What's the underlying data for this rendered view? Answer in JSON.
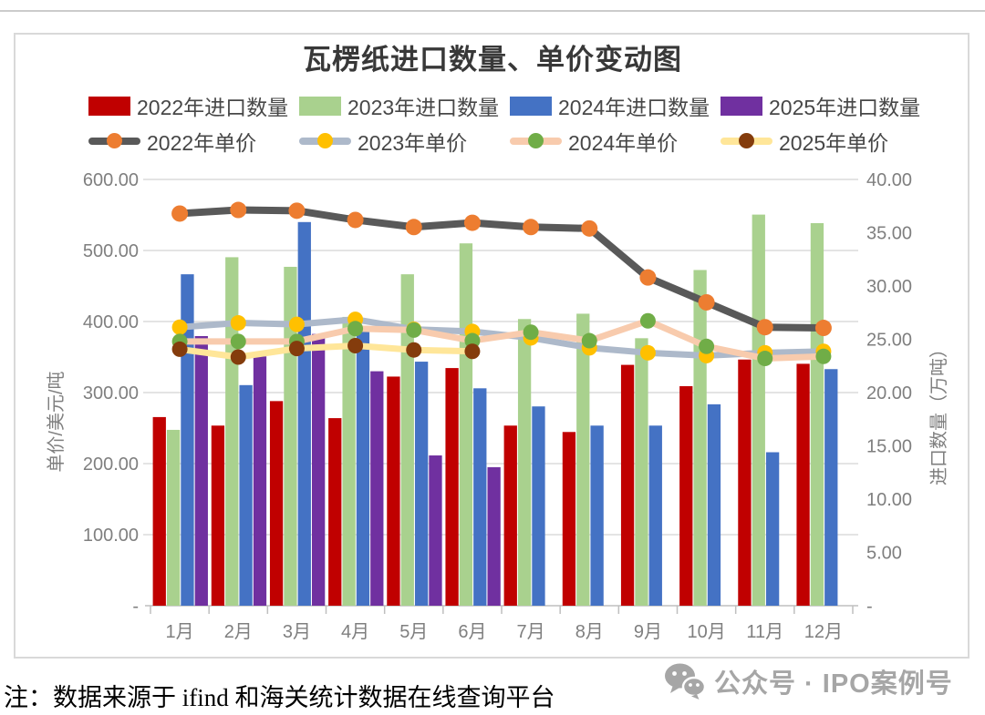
{
  "note": {
    "text": "注：数据来源于 ifind 和海关统计数据在线查询平台"
  },
  "watermark": {
    "text": "公众号 · IPO案例号"
  },
  "chart_data": {
    "type": "bar",
    "subtype": "bar-line-combo",
    "title": "瓦楞纸进口数量、单价变动图",
    "categories": [
      "1月",
      "2月",
      "3月",
      "4月",
      "5月",
      "6月",
      "7月",
      "8月",
      "9月",
      "10月",
      "11月",
      "12月"
    ],
    "grid": true,
    "legend_position": "top",
    "left_axis": {
      "title": "单价/美元/吨",
      "min": 0,
      "max": 600,
      "tick_labels": [
        "600.00",
        "500.00",
        "400.00",
        "300.00",
        "200.00",
        "100.00",
        "-"
      ]
    },
    "right_axis": {
      "title": "进口数量（万吨）",
      "min": 0,
      "max": 40,
      "tick_labels": [
        "40.00",
        "35.00",
        "30.00",
        "25.00",
        "20.00",
        "15.00",
        "10.00",
        "5.00",
        "-"
      ]
    },
    "bar_series": [
      {
        "name": "2022年进口数量",
        "axis": "right",
        "color": "#C00000",
        "values": [
          17.7,
          16.9,
          19.2,
          17.6,
          21.5,
          22.3,
          16.9,
          16.3,
          22.6,
          20.6,
          23.1,
          22.7
        ]
      },
      {
        "name": "2023年进口数量",
        "axis": "right",
        "color": "#A9D18E",
        "values": [
          16.5,
          32.7,
          31.8,
          27.1,
          31.1,
          34.0,
          26.9,
          27.4,
          25.1,
          31.5,
          36.7,
          35.9
        ]
      },
      {
        "name": "2024年进口数量",
        "axis": "right",
        "color": "#4472C4",
        "values": [
          31.1,
          20.7,
          36.0,
          25.7,
          22.9,
          20.4,
          18.7,
          16.9,
          16.9,
          18.9,
          14.4,
          22.2
        ]
      },
      {
        "name": "2025年进口数量",
        "axis": "right",
        "color": "#7030A0",
        "values": [
          25.3,
          23.4,
          25.5,
          22.0,
          14.1,
          13.0,
          null,
          null,
          null,
          null,
          null,
          null
        ]
      }
    ],
    "line_series": [
      {
        "name": "2022年单价",
        "axis": "left",
        "line_color": "#595959",
        "marker_color": "#ED7D31",
        "values": [
          552,
          557,
          556,
          543,
          533,
          539,
          533,
          531,
          462,
          427,
          392,
          391
        ]
      },
      {
        "name": "2023年单价",
        "axis": "left",
        "line_color": "#ADB9CA",
        "marker_color": "#FFC000",
        "values": [
          392,
          398,
          396,
          403,
          389,
          386,
          377,
          363,
          356,
          352,
          356,
          358
        ]
      },
      {
        "name": "2024年单价",
        "axis": "left",
        "line_color": "#F8CBAD",
        "marker_color": "#70AD47",
        "values": [
          372,
          372,
          372,
          390,
          388,
          373,
          385,
          373,
          401,
          365,
          348,
          351
        ]
      },
      {
        "name": "2025年单价",
        "axis": "left",
        "line_color": "#FFE699",
        "marker_color": "#843C0C",
        "values": [
          361,
          350,
          362,
          366,
          360,
          358,
          null,
          null,
          null,
          null,
          null,
          null
        ]
      }
    ],
    "style": {
      "grid_color": "#DCDCDC",
      "axis_color": "#BFBFBF",
      "tick_text_color": "#7F7F7F"
    }
  }
}
